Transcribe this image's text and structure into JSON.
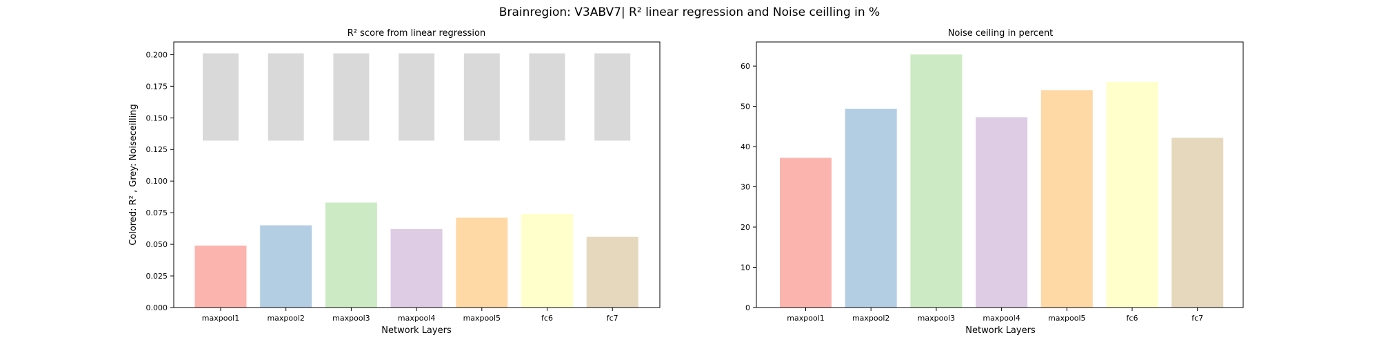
{
  "title": "Brainregion: V3ABV7| R² linear regression and Noise ceilling in %",
  "chart_data": [
    {
      "type": "bar",
      "title": "R² score from linear regression",
      "xlabel": "Network Layers",
      "ylabel": "Colored: R² , Grey: Noiseceilling",
      "categories": [
        "maxpool1",
        "maxpool2",
        "maxpool3",
        "maxpool4",
        "maxpool5",
        "fc6",
        "fc7"
      ],
      "series": [
        {
          "values": [
            0.049,
            0.065,
            0.083,
            0.062,
            0.071,
            0.074,
            0.056
          ]
        }
      ],
      "noise_ceiling_range": {
        "bottom": 0.132,
        "top": 0.201
      },
      "ylim": [
        0,
        0.21
      ],
      "yticks": [
        0.0,
        0.025,
        0.05,
        0.075,
        0.1,
        0.125,
        0.15,
        0.175,
        0.2
      ],
      "ytick_labels": [
        "0.000",
        "0.025",
        "0.050",
        "0.075",
        "0.100",
        "0.125",
        "0.150",
        "0.175",
        "0.200"
      ],
      "grid": false,
      "bar_colors": [
        "#fbb4ae",
        "#b3cde3",
        "#ccebc5",
        "#decbe4",
        "#fed9a6",
        "#ffffcc",
        "#e5d8bd"
      ],
      "noise_color": "#d9d9d9"
    },
    {
      "type": "bar",
      "title": "Noise ceiling in percent",
      "xlabel": "Network Layers",
      "ylabel": "",
      "categories": [
        "maxpool1",
        "maxpool2",
        "maxpool3",
        "maxpool4",
        "maxpool5",
        "fc6",
        "fc7"
      ],
      "series": [
        {
          "values": [
            37.2,
            49.4,
            62.9,
            47.3,
            54.0,
            56.1,
            42.2
          ]
        }
      ],
      "ylim": [
        0,
        66
      ],
      "yticks": [
        0,
        10,
        20,
        30,
        40,
        50,
        60
      ],
      "ytick_labels": [
        "0",
        "10",
        "20",
        "30",
        "40",
        "50",
        "60"
      ],
      "grid": false,
      "bar_colors": [
        "#fbb4ae",
        "#b3cde3",
        "#ccebc5",
        "#decbe4",
        "#fed9a6",
        "#ffffcc",
        "#e5d8bd"
      ]
    }
  ]
}
